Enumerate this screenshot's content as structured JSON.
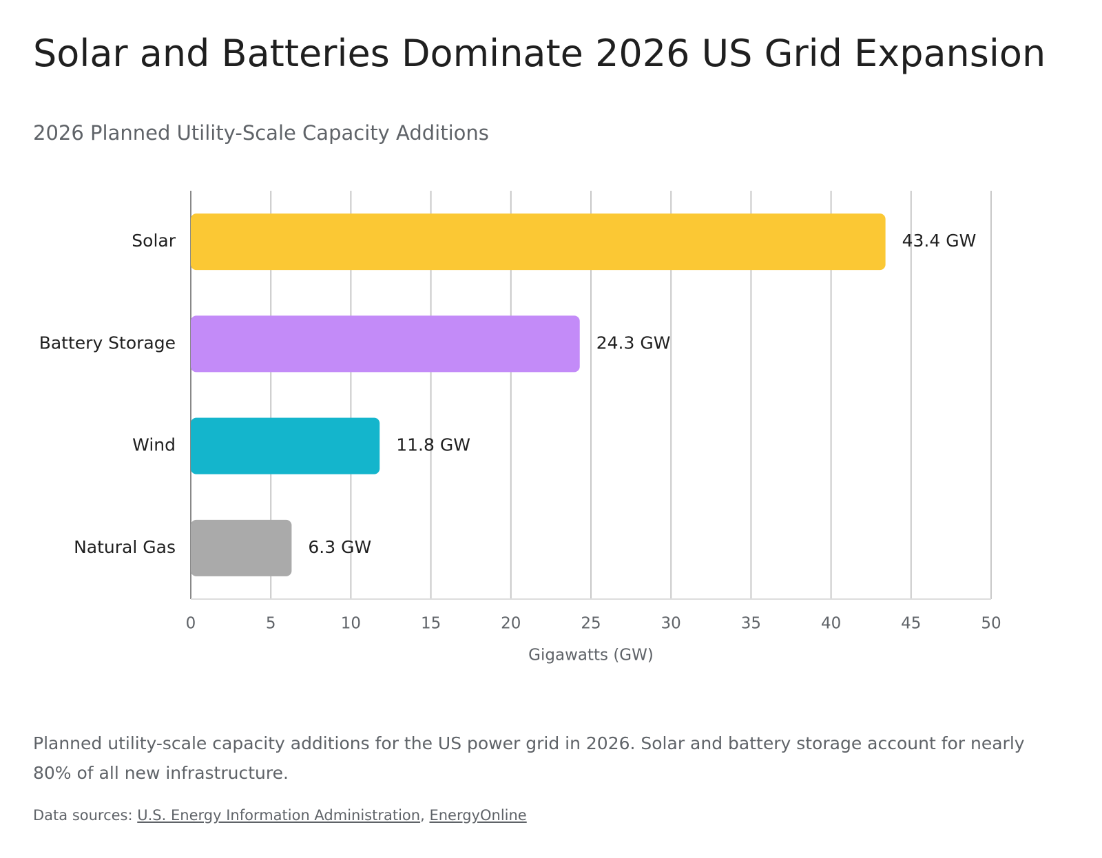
{
  "chart_data": {
    "type": "bar",
    "orientation": "horizontal",
    "title": "Solar and Batteries Dominate 2026 US Grid Expansion",
    "subtitle": "2026 Planned Utility-Scale Capacity Additions",
    "categories": [
      "Solar",
      "Battery Storage",
      "Wind",
      "Natural Gas"
    ],
    "values": [
      43.4,
      24.3,
      11.8,
      6.3
    ],
    "value_labels": [
      "43.4 GW",
      "24.3 GW",
      "11.8 GW",
      "6.3 GW"
    ],
    "colors": [
      "#fbc834",
      "#c38bf8",
      "#14b5cc",
      "#aaaaaa"
    ],
    "xlim": [
      0,
      50
    ],
    "xticks": [
      0,
      5,
      10,
      15,
      20,
      25,
      30,
      35,
      40,
      45,
      50
    ],
    "x_label": "Gigawatts (GW)",
    "grid": true
  },
  "caption": "Planned utility-scale capacity additions for the US power grid in 2026. Solar and battery storage account for nearly 80% of all new infrastructure.",
  "sources": {
    "label": "Data sources:",
    "links": [
      "U.S. Energy Information Administration",
      "EnergyOnline"
    ],
    "separator": ","
  }
}
